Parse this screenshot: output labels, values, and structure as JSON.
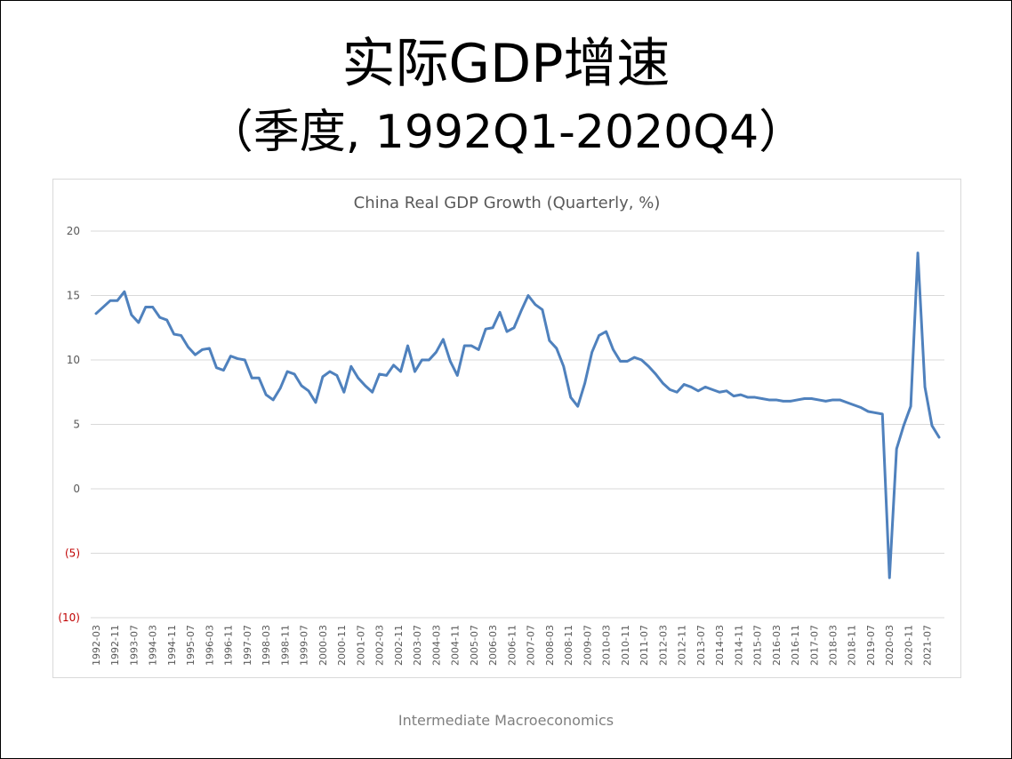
{
  "slide": {
    "title_line1": "实际GDP增速",
    "title_line2": "（季度, 1992Q1-2020Q4）",
    "footer": "Intermediate Macroeconomics"
  },
  "chart_data": {
    "type": "line",
    "title": "China Real GDP Growth (Quarterly, %)",
    "xlabel": "",
    "ylabel": "",
    "ylim": [
      -10,
      20
    ],
    "yticks": [
      {
        "value": 20,
        "label": "20",
        "color": "#595959"
      },
      {
        "value": 15,
        "label": "15",
        "color": "#595959"
      },
      {
        "value": 10,
        "label": "10",
        "color": "#595959"
      },
      {
        "value": 5,
        "label": "5",
        "color": "#595959"
      },
      {
        "value": 0,
        "label": "0",
        "color": "#595959"
      },
      {
        "value": -5,
        "label": "(5)",
        "color": "#c00000"
      },
      {
        "value": -10,
        "label": "(10)",
        "color": "#c00000"
      }
    ],
    "grid": true,
    "legend": "none",
    "line_color": "#4f81bd",
    "tick_labels": [
      "1992-03",
      "1992-11",
      "1993-07",
      "1994-03",
      "1994-11",
      "1995-07",
      "1996-03",
      "1996-11",
      "1997-07",
      "1998-03",
      "1998-11",
      "1999-07",
      "2000-03",
      "2000-11",
      "2001-07",
      "2002-03",
      "2002-11",
      "2003-07",
      "2004-03",
      "2004-11",
      "2005-07",
      "2006-03",
      "2006-11",
      "2007-07",
      "2008-03",
      "2008-11",
      "2009-07",
      "2010-03",
      "2010-11",
      "2011-07",
      "2012-03",
      "2012-11",
      "2013-07",
      "2014-03",
      "2014-11",
      "2015-07",
      "2016-03",
      "2016-11",
      "2017-07",
      "2018-03",
      "2018-11",
      "2019-07",
      "2020-03",
      "2020-11",
      "2021-07"
    ],
    "series": [
      {
        "start": "1992-03",
        "step_months": 3,
        "values": [
          13.6,
          14.1,
          14.6,
          14.6,
          15.3,
          13.5,
          12.9,
          14.1,
          14.1,
          13.3,
          13.1,
          12.0,
          11.9,
          11.0,
          10.4,
          10.8,
          10.9,
          9.4,
          9.2,
          10.3,
          10.1,
          10.0,
          8.6,
          8.6,
          7.3,
          6.9,
          7.8,
          9.1,
          8.9,
          8.0,
          7.6,
          6.7,
          8.7,
          9.1,
          8.8,
          7.5,
          9.5,
          8.6,
          8.0,
          7.5,
          8.9,
          8.8,
          9.6,
          9.1,
          11.1,
          9.1,
          10.0,
          10.0,
          10.6,
          11.6,
          9.9,
          8.8,
          11.1,
          11.1,
          10.8,
          12.4,
          12.5,
          13.7,
          12.2,
          12.5,
          13.8,
          15.0,
          14.3,
          13.9,
          11.5,
          10.9,
          9.5,
          7.1,
          6.4,
          8.2,
          10.6,
          11.9,
          12.2,
          10.8,
          9.9,
          9.9,
          10.2,
          10.0,
          9.5,
          8.9,
          8.2,
          7.7,
          7.5,
          8.1,
          7.9,
          7.6,
          7.9,
          7.7,
          7.5,
          7.6,
          7.2,
          7.3,
          7.1,
          7.1,
          7.0,
          6.9,
          6.9,
          6.8,
          6.8,
          6.9,
          7.0,
          7.0,
          6.9,
          6.8,
          6.9,
          6.9,
          6.7,
          6.5,
          6.3,
          6.0,
          5.9,
          5.8,
          -6.9,
          3.1,
          4.9,
          6.4,
          18.3,
          7.9,
          4.9,
          4.0
        ]
      }
    ]
  }
}
